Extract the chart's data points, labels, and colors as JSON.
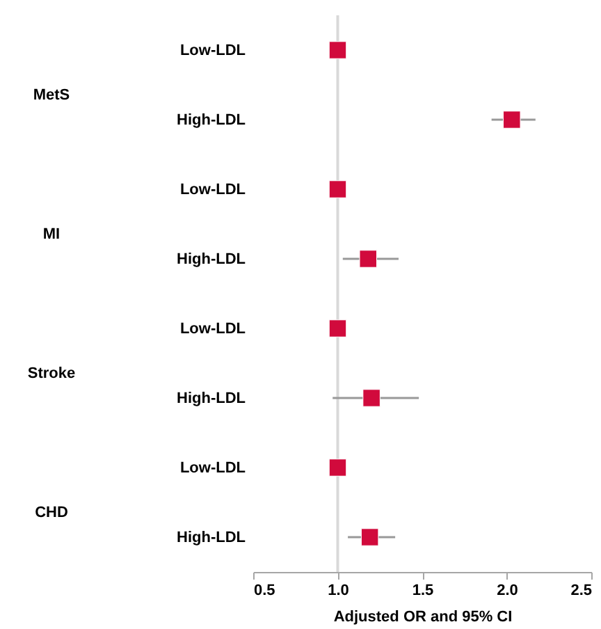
{
  "chart_data": {
    "type": "scatter",
    "orientation": "horizontal",
    "xlabel": "Adjusted OR and 95% CI",
    "categories": [
      "Low-LDL",
      "High-LDL",
      "Low-LDL",
      "High-LDL",
      "Low-LDL",
      "High-LDL",
      "Low-LDL",
      "High-LDL"
    ],
    "values": [
      1.0,
      2.03,
      1.0,
      1.18,
      1.0,
      1.2,
      1.0,
      1.19
    ],
    "errors": [
      null,
      [
        1.91,
        2.17
      ],
      null,
      [
        1.03,
        1.36
      ],
      null,
      [
        0.97,
        1.48
      ],
      null,
      [
        1.06,
        1.34
      ]
    ],
    "color": "#d10a3c",
    "marker": "square",
    "xlim": [
      0.5,
      2.5
    ],
    "xticks": [
      {
        "value": 0.5,
        "label": "0.5"
      },
      {
        "value": 1.0,
        "label": "1.0"
      },
      {
        "value": 1.5,
        "label": "1.5"
      },
      {
        "value": 2.0,
        "label": "2.0"
      },
      {
        "value": 2.5,
        "label": "2.5"
      }
    ],
    "ref_lines": [
      {
        "axis": "x",
        "value": 1.0,
        "color": "#d9d9d9"
      }
    ],
    "annotations": [
      "MetS",
      "MI",
      "Stroke",
      "CHD"
    ],
    "grid": false
  }
}
